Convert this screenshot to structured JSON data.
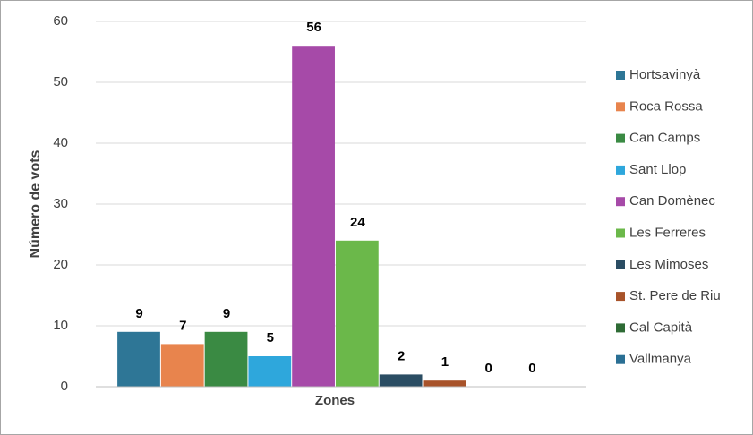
{
  "chart_data": {
    "type": "bar",
    "y_label": "Número de vots",
    "categories": [
      "Zones"
    ],
    "series": [
      {
        "name": "Hortsavinyà",
        "color": "#2e7696",
        "values": [
          9
        ]
      },
      {
        "name": "Roca Rossa",
        "color": "#e8844d",
        "values": [
          7
        ]
      },
      {
        "name": "Can Camps",
        "color": "#3a8a43",
        "values": [
          9
        ]
      },
      {
        "name": "Sant Llop",
        "color": "#2ea7dc",
        "values": [
          5
        ]
      },
      {
        "name": "Can Domènec",
        "color": "#a64aa8",
        "values": [
          56
        ]
      },
      {
        "name": "Les Ferreres",
        "color": "#6bb84a",
        "values": [
          24
        ]
      },
      {
        "name": "Les Mimoses",
        "color": "#2b4d63",
        "values": [
          2
        ]
      },
      {
        "name": "St. Pere de Riu",
        "color": "#a8532a",
        "values": [
          1
        ]
      },
      {
        "name": "Cal Capità",
        "color": "#2e6b35",
        "values": [
          0
        ]
      },
      {
        "name": "Vallmanya",
        "color": "#2a6f94",
        "values": [
          0
        ]
      }
    ],
    "ylim": [
      0,
      60
    ],
    "yticks": [
      0,
      10,
      20,
      30,
      40,
      50,
      60
    ],
    "grid": true,
    "legend": "right"
  }
}
